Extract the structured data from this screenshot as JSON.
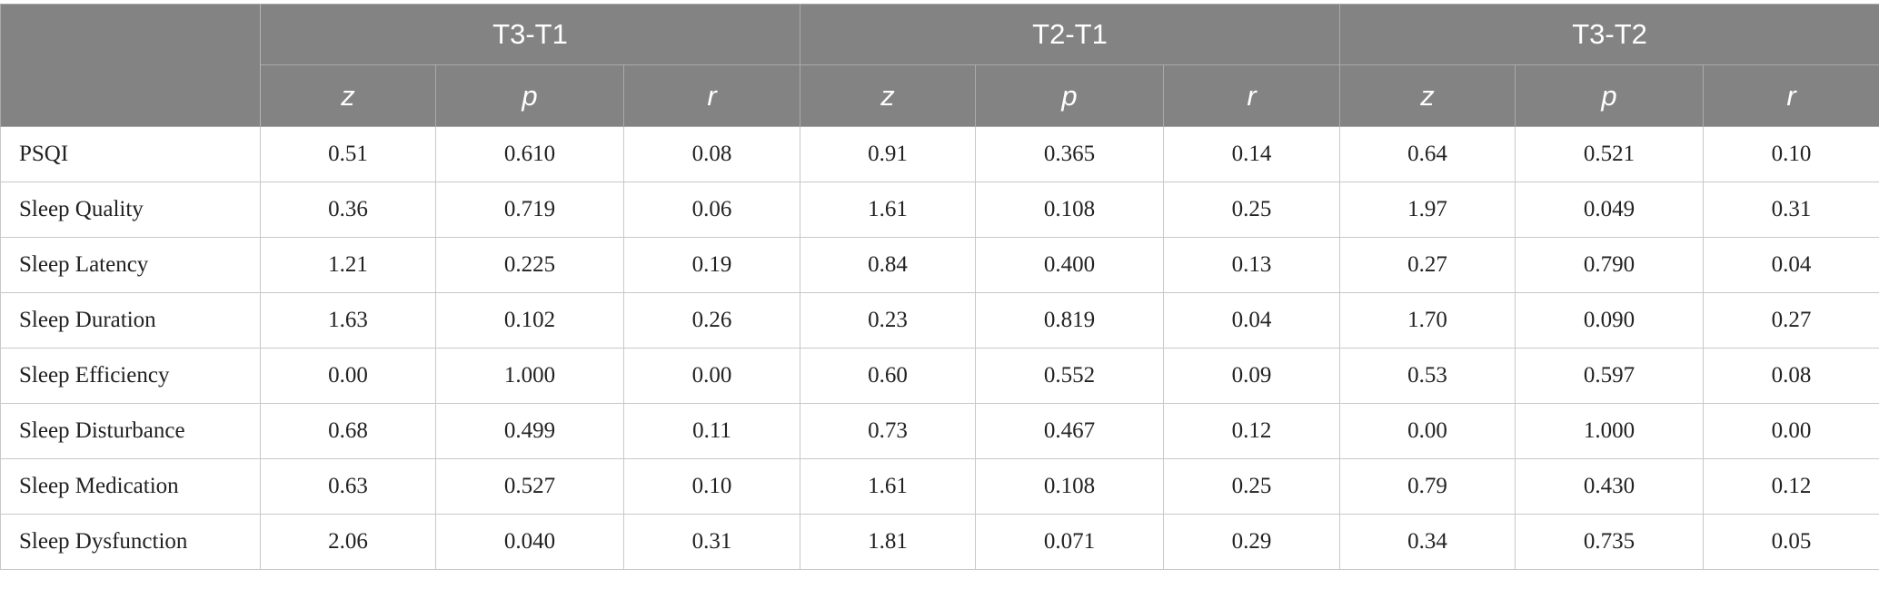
{
  "groups": [
    "T3-T1",
    "T2-T1",
    "T3-T2"
  ],
  "subheaders": [
    "z",
    "p",
    "r"
  ],
  "rows": [
    {
      "label": "PSQI",
      "values": [
        "0.51",
        "0.610",
        "0.08",
        "0.91",
        "0.365",
        "0.14",
        "0.64",
        "0.521",
        "0.10"
      ]
    },
    {
      "label": "Sleep Quality",
      "values": [
        "0.36",
        "0.719",
        "0.06",
        "1.61",
        "0.108",
        "0.25",
        "1.97",
        "0.049",
        "0.31"
      ]
    },
    {
      "label": "Sleep Latency",
      "values": [
        "1.21",
        "0.225",
        "0.19",
        "0.84",
        "0.400",
        "0.13",
        "0.27",
        "0.790",
        "0.04"
      ]
    },
    {
      "label": "Sleep Duration",
      "values": [
        "1.63",
        "0.102",
        "0.26",
        "0.23",
        "0.819",
        "0.04",
        "1.70",
        "0.090",
        "0.27"
      ]
    },
    {
      "label": "Sleep Efficiency",
      "values": [
        "0.00",
        "1.000",
        "0.00",
        "0.60",
        "0.552",
        "0.09",
        "0.53",
        "0.597",
        "0.08"
      ]
    },
    {
      "label": "Sleep Disturbance",
      "values": [
        "0.68",
        "0.499",
        "0.11",
        "0.73",
        "0.467",
        "0.12",
        "0.00",
        "1.000",
        "0.00"
      ]
    },
    {
      "label": "Sleep Medication",
      "values": [
        "0.63",
        "0.527",
        "0.10",
        "1.61",
        "0.108",
        "0.25",
        "0.79",
        "0.430",
        "0.12"
      ]
    },
    {
      "label": "Sleep Dysfunction",
      "values": [
        "2.06",
        "0.040",
        "0.31",
        "1.81",
        "0.071",
        "0.29",
        "0.34",
        "0.735",
        "0.05"
      ]
    }
  ]
}
